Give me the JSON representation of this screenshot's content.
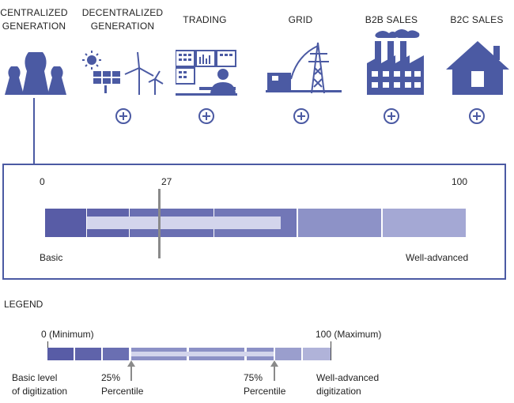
{
  "categories": [
    {
      "id": "centralized",
      "label": "CENTRALIZED GENERATION",
      "icon": "power-plant-icon",
      "expand": false
    },
    {
      "id": "decentralized",
      "label": "DECENTRALIZED GENERATION",
      "icon": "solar-wind-icon",
      "expand": true
    },
    {
      "id": "trading",
      "label": "TRADING",
      "icon": "trader-icon",
      "expand": true
    },
    {
      "id": "grid",
      "label": "GRID",
      "icon": "transmission-tower-icon",
      "expand": true
    },
    {
      "id": "b2b",
      "label": "B2B SALES",
      "icon": "factory-icon",
      "expand": true
    },
    {
      "id": "b2c",
      "label": "B2C SALES",
      "icon": "house-icon",
      "expand": true
    }
  ],
  "main_scale": {
    "min_label": "0",
    "max_label": "100",
    "marker_label": "27",
    "marker_value": 27,
    "range_low": 10,
    "range_high": 56,
    "left_label": "Basic",
    "right_label": "Well-advanced",
    "colors": [
      "#5a5fa8",
      "#6368ad",
      "#7479b8",
      "#8c91c6",
      "#a5a9d4"
    ]
  },
  "legend": {
    "title": "LEGEND",
    "min_label": "0 (Minimum)",
    "max_label": "100 (Maximum)",
    "p25_label": "25%\nPercentile",
    "p75_label": "75%\nPercentile",
    "basic_label": "Basic level\nof digitization",
    "advanced_label": "Well-advanced\ndigitization"
  },
  "colors": {
    "accent": "#4b5aa3",
    "frame": "#4b5aa3",
    "marker": "#8a8a8a"
  }
}
